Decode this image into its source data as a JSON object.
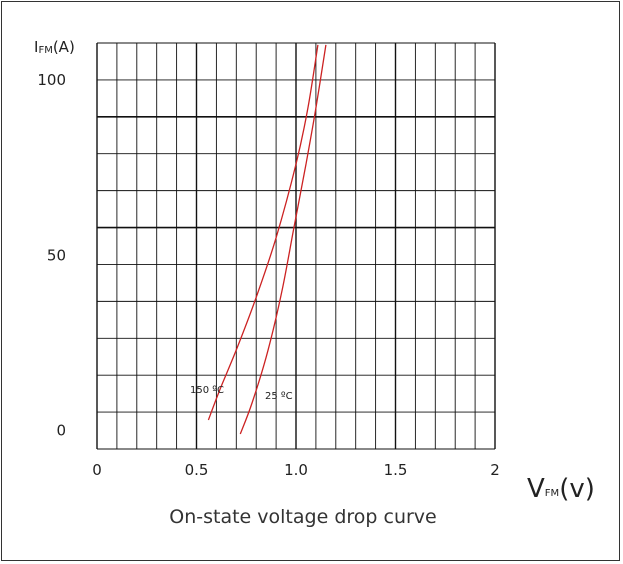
{
  "chart_data": {
    "type": "line",
    "title": "On-state voltage drop curve",
    "y_symbol_main": "I",
    "y_symbol_sub": "FM",
    "y_symbol_unit": "(A)",
    "x_symbol_main": "V",
    "x_symbol_sub": "FM",
    "x_symbol_unit": "(v)",
    "xlim": [
      0,
      2
    ],
    "ylim": [
      0,
      110
    ],
    "x_ticks": [
      0,
      0.5,
      1.0,
      1.5,
      2
    ],
    "x_tick_labels": [
      "0",
      "0.5",
      "1.0",
      "1.5",
      "2"
    ],
    "y_ticks": [
      0,
      50,
      100
    ],
    "y_tick_labels": [
      "0",
      "50",
      "100"
    ],
    "grid": true,
    "curve_color": "#cc2222",
    "series": [
      {
        "name": "150 ºC",
        "points": [
          [
            0.56,
            3
          ],
          [
            0.62,
            12
          ],
          [
            0.7,
            23
          ],
          [
            0.8,
            38
          ],
          [
            0.9,
            55
          ],
          [
            1.0,
            76
          ],
          [
            1.06,
            92
          ],
          [
            1.11,
            110
          ]
        ]
      },
      {
        "name": "25 ºC",
        "points": [
          [
            0.72,
            -1
          ],
          [
            0.78,
            8
          ],
          [
            0.86,
            23
          ],
          [
            0.93,
            40
          ],
          [
            0.99,
            58
          ],
          [
            1.05,
            76
          ],
          [
            1.1,
            92
          ],
          [
            1.15,
            110
          ]
        ]
      }
    ],
    "curve_labels": [
      {
        "text": "150 ºC",
        "series": "150 ºC"
      },
      {
        "text": "25 ºC",
        "series": "25 ºC"
      }
    ]
  }
}
